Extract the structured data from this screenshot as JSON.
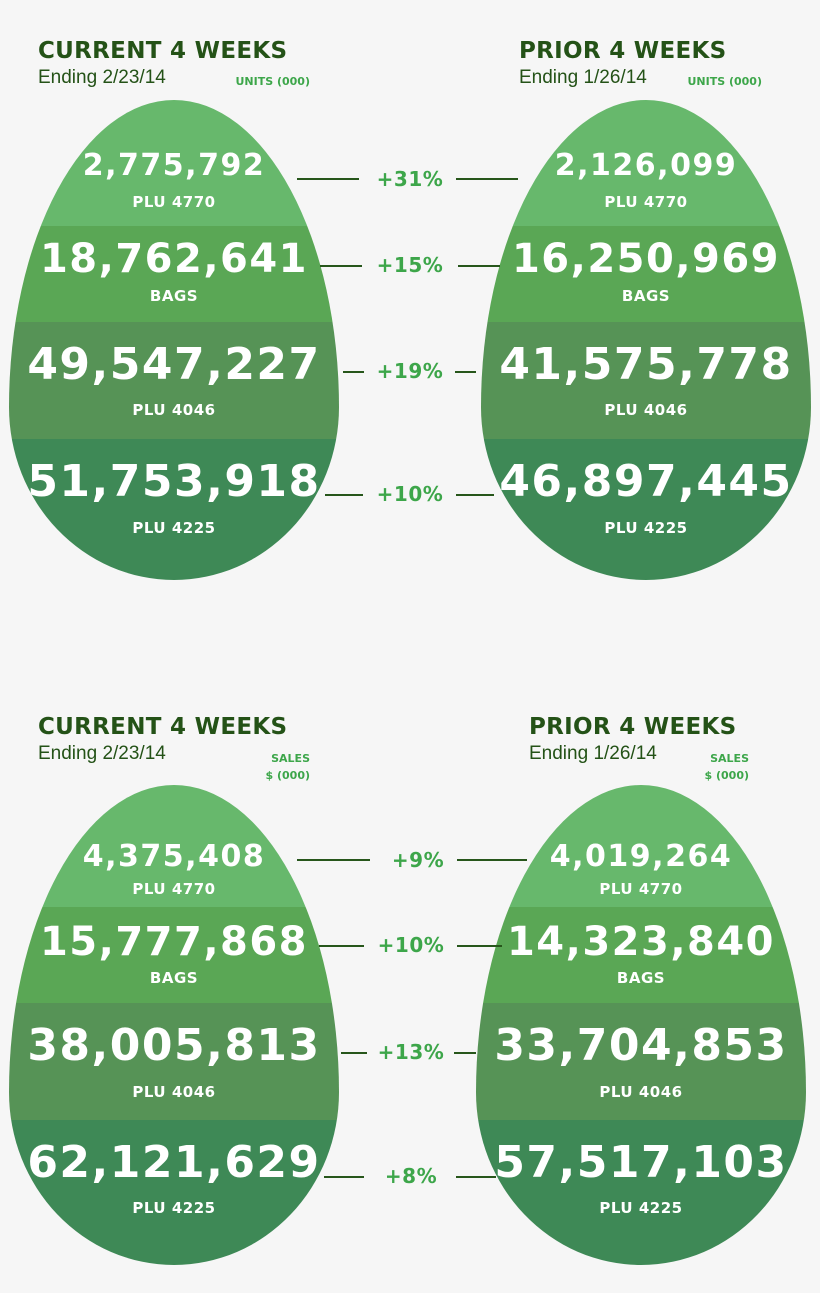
{
  "units": {
    "current": {
      "title": "CURRENT 4 WEEKS",
      "ending": "Ending 2/23/14",
      "unit": "UNITS (000)"
    },
    "prior": {
      "title": "PRIOR 4 WEEKS",
      "ending": "Ending 1/26/14",
      "unit": "UNITS (000)"
    },
    "rows": [
      {
        "label": "PLU 4770",
        "current": "2,775,792",
        "prior": "2,126,099",
        "change": "+31%"
      },
      {
        "label": "BAGS",
        "current": "18,762,641",
        "prior": "16,250,969",
        "change": "+15%"
      },
      {
        "label": "PLU 4046",
        "current": "49,547,227",
        "prior": "41,575,778",
        "change": "+19%"
      },
      {
        "label": "PLU 4225",
        "current": "51,753,918",
        "prior": "46,897,445",
        "change": "+10%"
      }
    ]
  },
  "sales": {
    "current": {
      "title": "CURRENT 4 WEEKS",
      "ending": "Ending 2/23/14",
      "unit_line1": "SALES",
      "unit_line2": "$ (000)"
    },
    "prior": {
      "title": "PRIOR 4 WEEKS",
      "ending": "Ending 1/26/14",
      "unit_line1": "SALES",
      "unit_line2": "$ (000)"
    },
    "rows": [
      {
        "label": "PLU 4770",
        "current": "4,375,408",
        "prior": "4,019,264",
        "change": "+9%"
      },
      {
        "label": "BAGS",
        "current": "15,777,868",
        "prior": "14,323,840",
        "change": "+10%"
      },
      {
        "label": "PLU 4046",
        "current": "38,005,813",
        "prior": "33,704,853",
        "change": "+13%"
      },
      {
        "label": "PLU 4225",
        "current": "62,121,629",
        "prior": "57,517,103",
        "change": "+8%"
      }
    ]
  }
}
